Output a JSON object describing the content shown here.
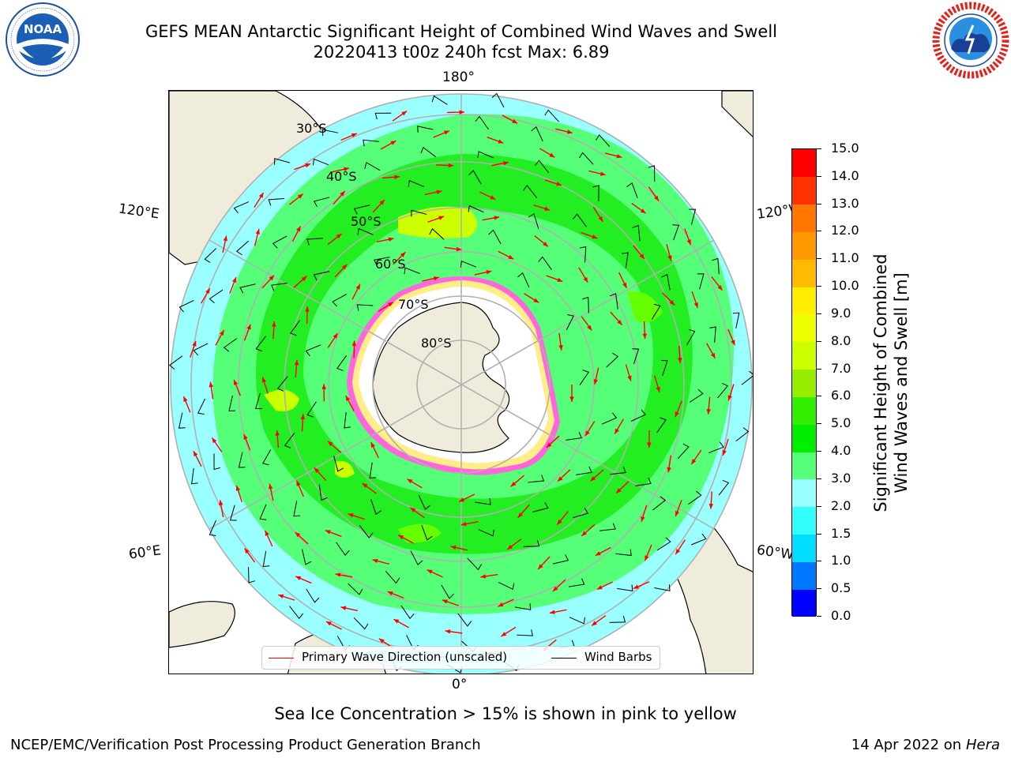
{
  "header": {
    "title_line1": "GEFS MEAN Antarctic Significant Height of Combined Wind Waves and Swell",
    "title_line2": "20220413 t00z 240h fcst   Max: 6.89"
  },
  "logos": {
    "left": {
      "name": "NOAA",
      "ring_text": "NATIONAL OCEANIC AND ATMOSPHERIC ADMINISTRATION · U.S. DEPARTMENT OF COMMERCE"
    },
    "right": {
      "name": "NATIONAL WEATHER SERVICE"
    }
  },
  "map": {
    "longitude_labels": {
      "top": "180°",
      "bottom": "0°",
      "left_upper": "120°E",
      "left_lower": "60°E",
      "right_upper": "120°W",
      "right_lower": "60°W"
    },
    "latitude_labels": [
      "30°S",
      "40°S",
      "50°S",
      "60°S",
      "70°S",
      "80°S"
    ],
    "colors": {
      "land": "#efecdc",
      "ice": "#ffffff",
      "ice_edge": "#ff33cc",
      "wave_vector": "#ff0000",
      "wind_barb": "#000000",
      "grid": "#b0b0b0"
    }
  },
  "legend": {
    "items": [
      {
        "label": "Primary Wave Direction (unscaled)",
        "color": "#ff0000"
      },
      {
        "label": "Wind Barbs",
        "color": "#000000"
      }
    ]
  },
  "colorbar": {
    "label_line1": "Significant Height of Combined",
    "label_line2": "Wind Waves and Swell [m]",
    "ticks": [
      "0.0",
      "0.5",
      "1.0",
      "1.5",
      "2.0",
      "3.0",
      "4.0",
      "5.0",
      "6.0",
      "7.0",
      "8.0",
      "9.0",
      "10.0",
      "11.0",
      "12.0",
      "13.0",
      "14.0",
      "15.0"
    ],
    "colors": [
      "#0000ff",
      "#0077ff",
      "#00ddff",
      "#33ffff",
      "#99ffff",
      "#55ff77",
      "#00ee00",
      "#33ee00",
      "#99ee00",
      "#ccff00",
      "#eeff00",
      "#ffee00",
      "#ffbb00",
      "#ff9900",
      "#ff7700",
      "#ff3300",
      "#ff0000"
    ]
  },
  "caption": "Sea Ice Concentration > 15% is shown in pink to yellow",
  "footer": {
    "left": "NCEP/EMC/Verification Post Processing Product Generation Branch",
    "right_date": "14 Apr 2022 on",
    "right_host": "Hera"
  }
}
